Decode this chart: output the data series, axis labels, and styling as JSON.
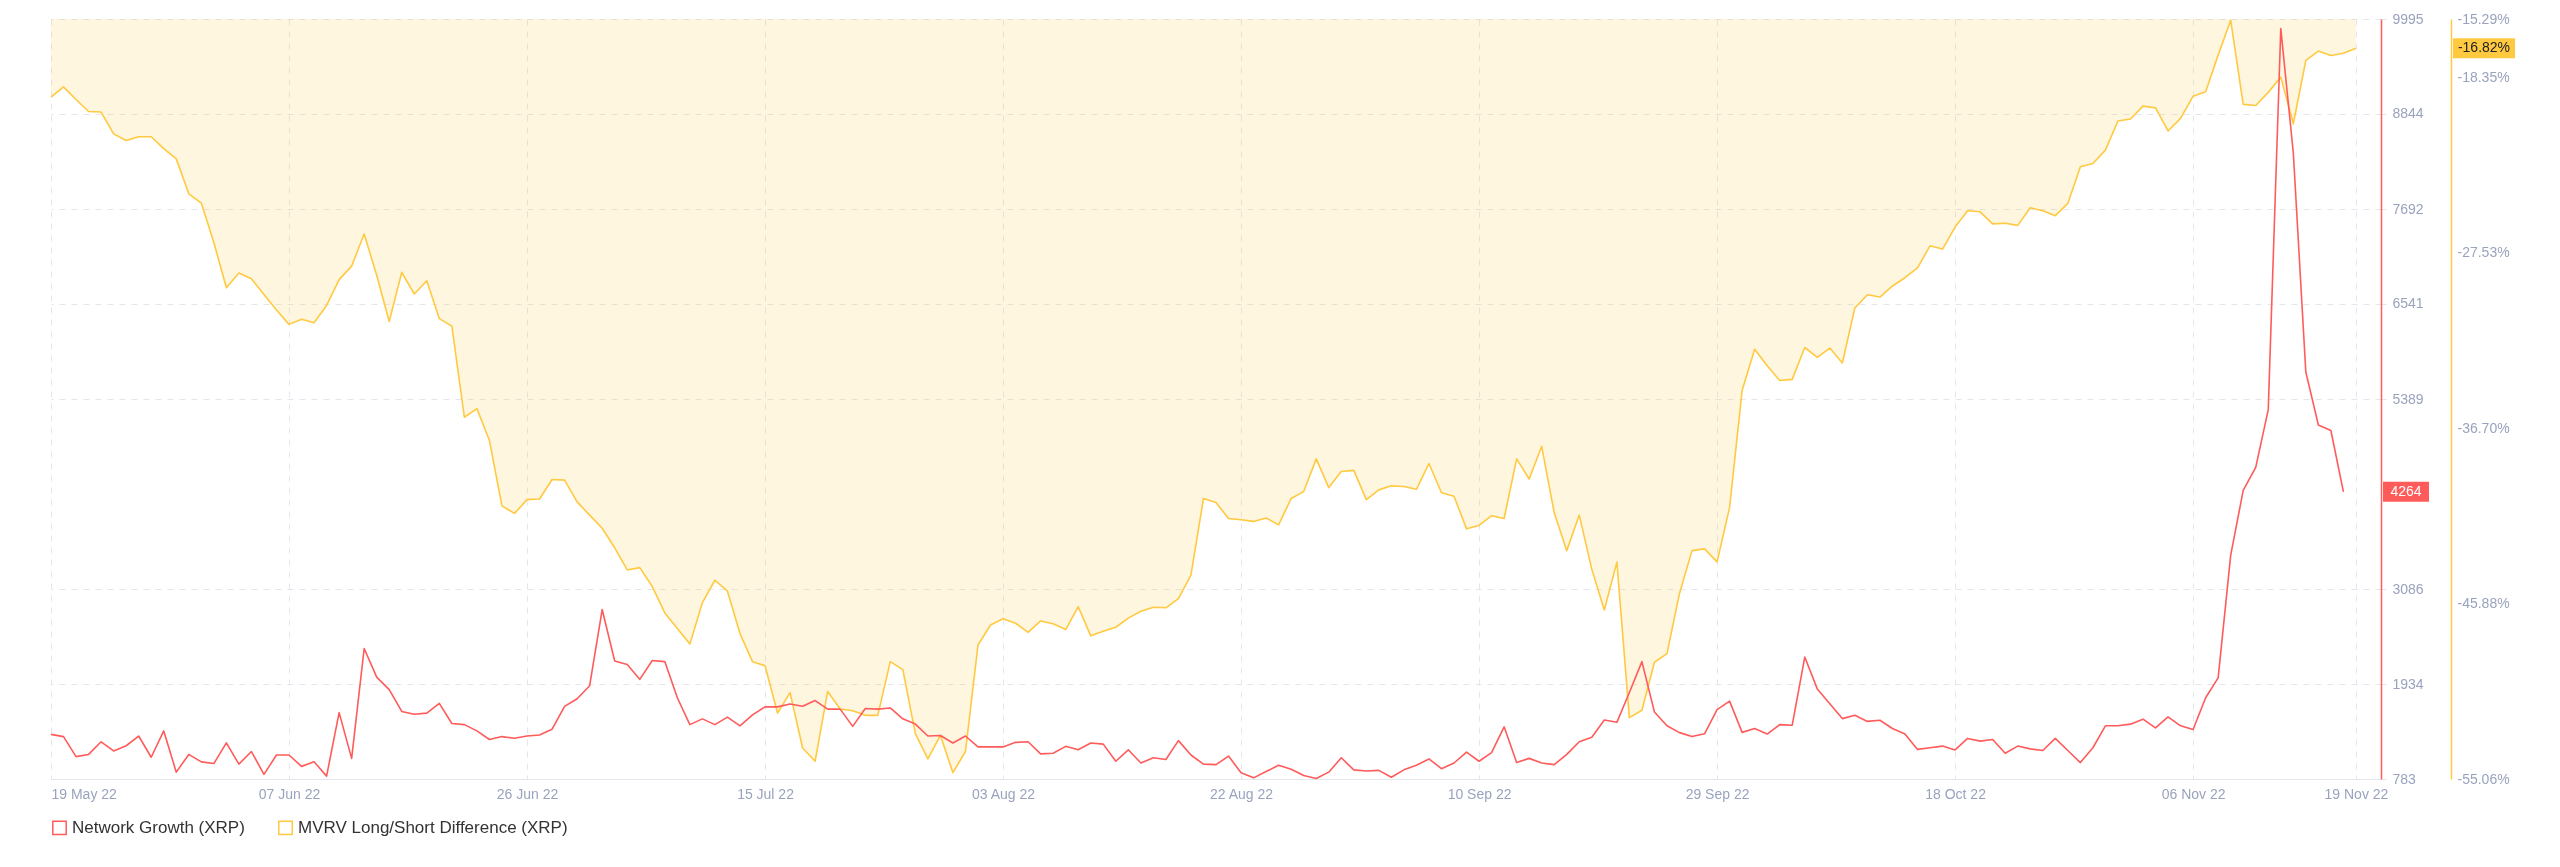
{
  "chart_data": {
    "type": "line",
    "x": [
      "2022-05-19",
      "2022-05-20",
      "2022-05-21",
      "2022-05-22",
      "2022-05-23",
      "2022-05-24",
      "2022-05-25",
      "2022-05-26",
      "2022-05-27",
      "2022-05-28",
      "2022-05-29",
      "2022-05-30",
      "2022-05-31",
      "2022-06-01",
      "2022-06-02",
      "2022-06-03",
      "2022-06-04",
      "2022-06-05",
      "2022-06-06",
      "2022-06-07",
      "2022-06-08",
      "2022-06-09",
      "2022-06-10",
      "2022-06-11",
      "2022-06-12",
      "2022-06-13",
      "2022-06-14",
      "2022-06-15",
      "2022-06-16",
      "2022-06-17",
      "2022-06-18",
      "2022-06-19",
      "2022-06-20",
      "2022-06-21",
      "2022-06-22",
      "2022-06-23",
      "2022-06-24",
      "2022-06-25",
      "2022-06-26",
      "2022-06-27",
      "2022-06-28",
      "2022-06-29",
      "2022-06-30",
      "2022-07-01",
      "2022-07-02",
      "2022-07-03",
      "2022-07-04",
      "2022-07-05",
      "2022-07-06",
      "2022-07-07",
      "2022-07-08",
      "2022-07-09",
      "2022-07-10",
      "2022-07-11",
      "2022-07-12",
      "2022-07-13",
      "2022-07-14",
      "2022-07-15",
      "2022-07-16",
      "2022-07-17",
      "2022-07-18",
      "2022-07-19",
      "2022-07-20",
      "2022-07-21",
      "2022-07-22",
      "2022-07-23",
      "2022-07-24",
      "2022-07-25",
      "2022-07-26",
      "2022-07-27",
      "2022-07-28",
      "2022-07-29",
      "2022-07-30",
      "2022-07-31",
      "2022-08-01",
      "2022-08-02",
      "2022-08-03",
      "2022-08-04",
      "2022-08-05",
      "2022-08-06",
      "2022-08-07",
      "2022-08-08",
      "2022-08-09",
      "2022-08-10",
      "2022-08-11",
      "2022-08-12",
      "2022-08-13",
      "2022-08-14",
      "2022-08-15",
      "2022-08-16",
      "2022-08-17",
      "2022-08-18",
      "2022-08-19",
      "2022-08-20",
      "2022-08-21",
      "2022-08-22",
      "2022-08-23",
      "2022-08-24",
      "2022-08-25",
      "2022-08-26",
      "2022-08-27",
      "2022-08-28",
      "2022-08-29",
      "2022-08-30",
      "2022-08-31",
      "2022-09-01",
      "2022-09-02",
      "2022-09-03",
      "2022-09-04",
      "2022-09-05",
      "2022-09-06",
      "2022-09-07",
      "2022-09-08",
      "2022-09-09",
      "2022-09-10",
      "2022-09-11",
      "2022-09-12",
      "2022-09-13",
      "2022-09-14",
      "2022-09-15",
      "2022-09-16",
      "2022-09-17",
      "2022-09-18",
      "2022-09-19",
      "2022-09-20",
      "2022-09-21",
      "2022-09-22",
      "2022-09-23",
      "2022-09-24",
      "2022-09-25",
      "2022-09-26",
      "2022-09-27",
      "2022-09-28",
      "2022-09-29",
      "2022-09-30",
      "2022-10-01",
      "2022-10-02",
      "2022-10-03",
      "2022-10-04",
      "2022-10-05",
      "2022-10-06",
      "2022-10-07",
      "2022-10-08",
      "2022-10-09",
      "2022-10-10",
      "2022-10-11",
      "2022-10-12",
      "2022-10-13",
      "2022-10-14",
      "2022-10-15",
      "2022-10-16",
      "2022-10-17",
      "2022-10-18",
      "2022-10-19",
      "2022-10-20",
      "2022-10-21",
      "2022-10-22",
      "2022-10-23",
      "2022-10-24",
      "2022-10-25",
      "2022-10-26",
      "2022-10-27",
      "2022-10-28",
      "2022-10-29",
      "2022-10-30",
      "2022-10-31",
      "2022-11-01",
      "2022-11-02",
      "2022-11-03",
      "2022-11-04",
      "2022-11-05",
      "2022-11-06",
      "2022-11-07",
      "2022-11-08",
      "2022-11-09",
      "2022-11-10",
      "2022-11-11",
      "2022-11-12",
      "2022-11-13",
      "2022-11-14",
      "2022-11-15",
      "2022-11-16",
      "2022-11-17",
      "2022-11-18",
      "2022-11-19"
    ],
    "series": [
      {
        "name": "Network Growth (XRP)",
        "color": "#ff5b5b",
        "values": [
          1324,
          1297,
          1054,
          1081,
          1234,
          1123,
          1186,
          1304,
          1047,
          1366,
          866,
          1081,
          991,
          970,
          1220,
          963,
          1116,
          839,
          1074,
          1074,
          936,
          991,
          818,
          1588,
          1033,
          2365,
          2018,
          1866,
          1602,
          1567,
          1581,
          1699,
          1456,
          1442,
          1366,
          1262,
          1297,
          1276,
          1304,
          1317,
          1387,
          1664,
          1755,
          1914,
          2837,
          2213,
          2171,
          1991,
          2220,
          2206,
          1768,
          1442,
          1512,
          1442,
          1533,
          1428,
          1560,
          1657,
          1657,
          1692,
          1664,
          1734,
          1630,
          1630,
          1421,
          1637,
          1630,
          1644,
          1512,
          1449,
          1304,
          1311,
          1220,
          1304,
          1172,
          1172,
          1172,
          1227,
          1234,
          1088,
          1095,
          1179,
          1137,
          1220,
          1206,
          998,
          1137,
          977,
          1040,
          1019,
          1248,
          1074,
          963,
          957,
          1061,
          859,
          797,
          873,
          950,
          901,
          825,
          790,
          866,
          1040,
          894,
          880,
          887,
          804,
          894,
          950,
          1026,
          908,
          977,
          1109,
          998,
          1102,
          1415,
          984,
          1033,
          977,
          957,
          1081,
          1234,
          1290,
          1498,
          1470,
          1831,
          2206,
          1595,
          1428,
          1345,
          1297,
          1331,
          1623,
          1727,
          1348,
          1395,
          1328,
          1442,
          1435,
          2261,
          1875,
          1695,
          1515,
          1555,
          1481,
          1495,
          1395,
          1328,
          1142,
          1162,
          1182,
          1135,
          1275,
          1242,
          1262,
          1095,
          1182,
          1148,
          1128,
          1275,
          1128,
          982,
          1162,
          1428,
          1428,
          1448,
          1508,
          1402,
          1535,
          1428,
          1382,
          1768,
          2008,
          3494,
          4281,
          4561,
          5260,
          9879,
          8373,
          5714,
          5074,
          5007,
          4264,
          null
        ]
      },
      {
        "name": "MVRV Long/Short Difference (XRP)",
        "color": "#ffc940",
        "type": "area",
        "axis": "y2",
        "values": [
          -19.38,
          -18.84,
          -19.5,
          -20.13,
          -20.16,
          -21.3,
          -21.65,
          -21.45,
          -21.45,
          -22.07,
          -22.61,
          -24.44,
          -24.92,
          -26.99,
          -29.35,
          -28.58,
          -28.88,
          -29.71,
          -30.52,
          -31.27,
          -31.0,
          -31.18,
          -30.28,
          -28.93,
          -28.22,
          -26.54,
          -28.7,
          -31.12,
          -28.55,
          -29.68,
          -28.99,
          -30.97,
          -31.36,
          -36.13,
          -35.68,
          -37.35,
          -40.77,
          -41.16,
          -40.44,
          -40.41,
          -39.39,
          -39.42,
          -40.56,
          -41.25,
          -41.94,
          -42.96,
          -44.12,
          -44.0,
          -44.99,
          -46.37,
          -47.18,
          -47.99,
          -45.83,
          -44.66,
          -45.23,
          -47.45,
          -48.92,
          -49.13,
          -51.61,
          -50.54,
          -53.44,
          -54.13,
          -50.48,
          -51.4,
          -51.49,
          -51.73,
          -51.73,
          -48.92,
          -49.34,
          -52.69,
          -54.01,
          -52.78,
          -54.73,
          -53.62,
          -48.05,
          -47.0,
          -46.67,
          -46.91,
          -47.39,
          -46.79,
          -46.94,
          -47.24,
          -46.04,
          -47.57,
          -47.33,
          -47.12,
          -46.64,
          -46.28,
          -46.07,
          -46.1,
          -45.62,
          -44.39,
          -40.38,
          -40.59,
          -41.43,
          -41.49,
          -41.58,
          -41.4,
          -41.76,
          -40.38,
          -40.02,
          -38.31,
          -39.81,
          -38.97,
          -38.91,
          -40.44,
          -39.93,
          -39.72,
          -39.75,
          -39.9,
          -38.55,
          -40.08,
          -40.26,
          -41.97,
          -41.79,
          -41.28,
          -41.43,
          -38.31,
          -39.36,
          -37.65,
          -41.13,
          -43.11,
          -41.25,
          -44.09,
          -46.22,
          -43.71,
          -51.85,
          -51.46,
          -48.95,
          -48.5,
          -45.35,
          -43.11,
          -43.02,
          -43.7,
          -40.85,
          -34.73,
          -32.57,
          -33.43,
          -34.21,
          -34.15,
          -32.48,
          -33.0,
          -32.51,
          -33.29,
          -30.41,
          -29.72,
          -29.84,
          -29.26,
          -28.83,
          -28.31,
          -27.16,
          -27.33,
          -26.18,
          -25.32,
          -25.38,
          -26.01,
          -25.98,
          -26.09,
          -25.17,
          -25.32,
          -25.58,
          -24.94,
          -23.02,
          -22.85,
          -22.15,
          -20.63,
          -20.52,
          -19.85,
          -19.94,
          -21.15,
          -20.49,
          -19.33,
          -19.1,
          -17.18,
          -15.35,
          -19.76,
          -19.82,
          -19.13,
          -18.33,
          -20.77,
          -17.46,
          -16.97,
          -17.2,
          -17.08,
          -16.82
        ]
      }
    ],
    "xlim": [
      "2022-05-19",
      "2022-11-21"
    ],
    "xticks": [
      {
        "value": "2022-05-19",
        "label": "19 May 22"
      },
      {
        "value": "2022-06-07",
        "label": "07 Jun 22"
      },
      {
        "value": "2022-06-26",
        "label": "26 Jun 22"
      },
      {
        "value": "2022-07-15",
        "label": "15 Jul 22"
      },
      {
        "value": "2022-08-03",
        "label": "03 Aug 22"
      },
      {
        "value": "2022-08-22",
        "label": "22 Aug 22"
      },
      {
        "value": "2022-09-10",
        "label": "10 Sep 22"
      },
      {
        "value": "2022-09-29",
        "label": "29 Sep 22"
      },
      {
        "value": "2022-10-18",
        "label": "18 Oct 22"
      },
      {
        "value": "2022-11-06",
        "label": "06 Nov 22"
      },
      {
        "value": "2022-11-19",
        "label": "19 Nov 22"
      }
    ],
    "ylim": [
      783,
      9995
    ],
    "yticks": [
      783,
      1934,
      3086,
      5389,
      6541,
      7692,
      8844,
      9995
    ],
    "y2lim": [
      -55.06,
      -15.29
    ],
    "y2ticks": [
      {
        "value": -55.06,
        "label": "-55.06%"
      },
      {
        "value": -45.88,
        "label": "-45.88%"
      },
      {
        "value": -36.7,
        "label": "-36.70%"
      },
      {
        "value": -27.53,
        "label": "-27.53%"
      },
      {
        "value": -18.35,
        "label": "-18.35%"
      },
      {
        "value": -15.29,
        "label": "-15.29%"
      }
    ],
    "annotations": [
      "4264",
      "-16.82%"
    ],
    "grid": true,
    "legend": "bottom"
  }
}
